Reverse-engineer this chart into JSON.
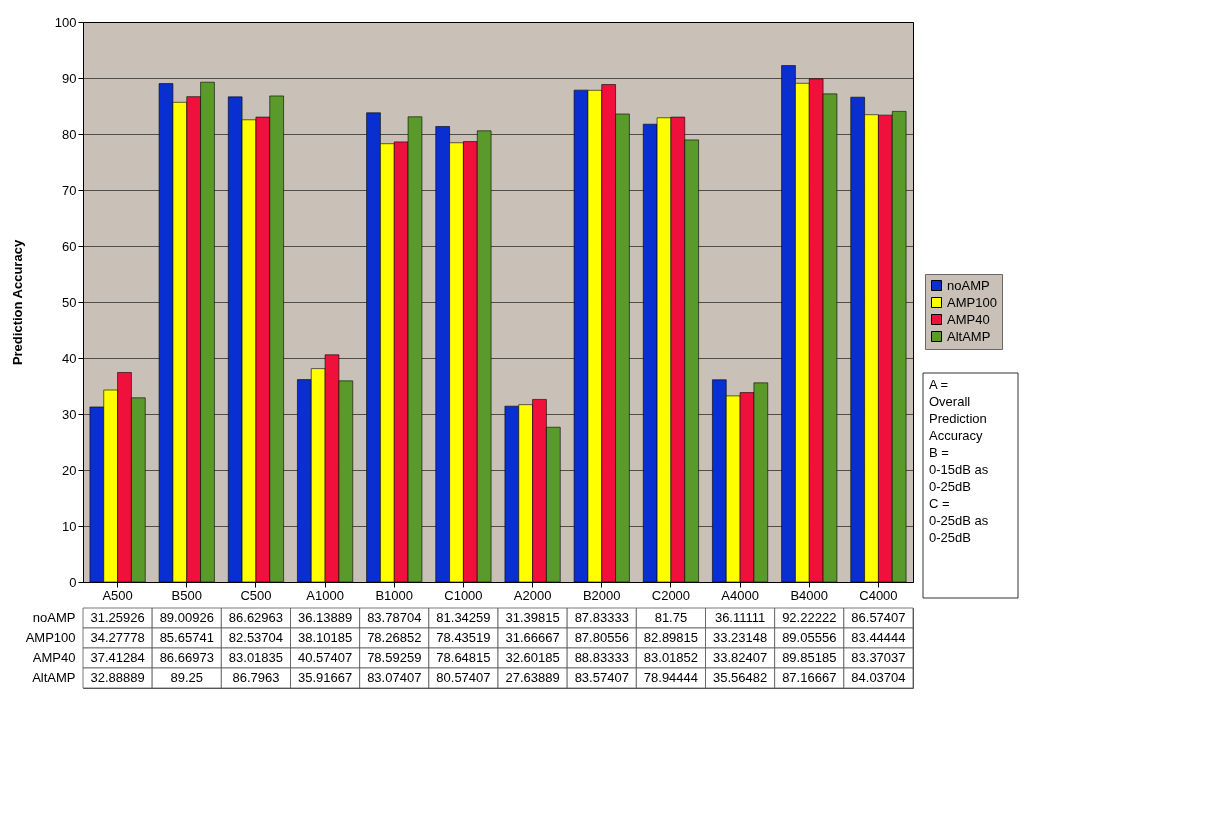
{
  "chart_data": {
    "type": "bar",
    "ylabel": "Prediction Accuracy",
    "categories": [
      "A500",
      "B500",
      "C500",
      "A1000",
      "B1000",
      "C1000",
      "A2000",
      "B2000",
      "C2000",
      "A4000",
      "B4000",
      "C4000"
    ],
    "series": [
      {
        "name": "noAMP",
        "color": "#0a2fd0",
        "values": [
          31.25926,
          89.00926,
          86.62963,
          36.13889,
          83.78704,
          81.34259,
          31.39815,
          87.83333,
          81.75,
          36.11111,
          92.22222,
          86.57407
        ]
      },
      {
        "name": "AMP100",
        "color": "#ffff00",
        "values": [
          34.27778,
          85.65741,
          82.53704,
          38.10185,
          78.26852,
          78.43519,
          31.66667,
          87.80556,
          82.89815,
          33.23148,
          89.05556,
          83.44444
        ]
      },
      {
        "name": "AMP40",
        "color": "#f0103c",
        "values": [
          37.41284,
          86.66973,
          83.01835,
          40.57407,
          78.59259,
          78.64815,
          32.60185,
          88.83333,
          83.01852,
          33.82407,
          89.85185,
          83.37037
        ]
      },
      {
        "name": "AltAMP",
        "color": "#5a9a2a",
        "values": [
          32.88889,
          89.25,
          86.7963,
          35.91667,
          83.07407,
          80.57407,
          27.63889,
          83.57407,
          78.94444,
          35.56482,
          87.16667,
          84.03704
        ]
      }
    ],
    "ylim": [
      0,
      100
    ],
    "yticks": [
      0,
      10,
      20,
      30,
      40,
      50,
      60,
      70,
      80,
      90,
      100
    ],
    "grid": "y",
    "legend": "right",
    "data_labels": true,
    "annotations": [
      "A =\nOverall\nPrediction\nAccuracy\n\nB =\n0-15dB as\n0-25dB\n\nC =\n0-25dB as\n0-25dB"
    ]
  }
}
